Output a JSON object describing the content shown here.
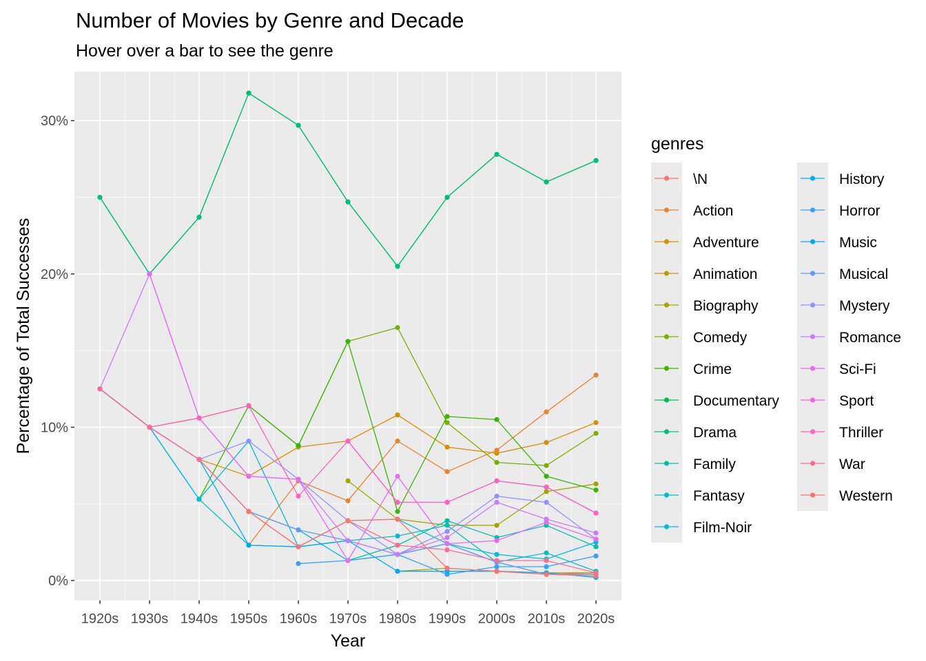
{
  "chart_data": {
    "type": "line",
    "title": "Number of Movies by Genre and Decade",
    "subtitle": "Hover over a bar to see the genre",
    "xlabel": "Year",
    "ylabel": "Percentage of Total Successes",
    "categories": [
      "1920s",
      "1930s",
      "1940s",
      "1950s",
      "1960s",
      "1970s",
      "1980s",
      "1990s",
      "2000s",
      "2010s",
      "2020s"
    ],
    "ylim": [
      -1.3,
      33.2
    ],
    "yticks": [
      0,
      10,
      20,
      30
    ],
    "ytick_labels": [
      "0%",
      "10%",
      "20%",
      "30%"
    ],
    "grid": true,
    "legend_title": "genres",
    "legend_position": "right",
    "series": [
      {
        "name": "\\N",
        "color": "#F8766D",
        "values": [
          null,
          null,
          7.9,
          null,
          null,
          null,
          null,
          null,
          0.6,
          0.4,
          0.5
        ]
      },
      {
        "name": "Action",
        "color": "#EA8331",
        "values": [
          null,
          null,
          null,
          2.3,
          6.5,
          5.2,
          9.1,
          7.1,
          8.5,
          11.0,
          13.4
        ]
      },
      {
        "name": "Adventure",
        "color": "#D89000",
        "values": [
          null,
          10.0,
          7.9,
          6.8,
          8.7,
          9.1,
          10.8,
          8.7,
          8.3,
          9.0,
          10.3
        ]
      },
      {
        "name": "Animation",
        "color": "#C09B00",
        "values": [
          null,
          null,
          null,
          null,
          null,
          null,
          0.6,
          0.8,
          0.6,
          0.5,
          0.5
        ]
      },
      {
        "name": "Biography",
        "color": "#A3A500",
        "values": [
          null,
          null,
          null,
          null,
          null,
          6.5,
          4.0,
          3.6,
          3.6,
          5.8,
          6.3
        ]
      },
      {
        "name": "Comedy",
        "color": "#7CAE00",
        "values": [
          12.5,
          10.0,
          10.6,
          11.4,
          8.8,
          15.6,
          16.5,
          10.3,
          7.7,
          7.5,
          9.6
        ]
      },
      {
        "name": "Crime",
        "color": "#39B600",
        "values": [
          null,
          null,
          5.3,
          11.4,
          8.8,
          15.6,
          4.5,
          10.7,
          10.5,
          6.8,
          5.9
        ]
      },
      {
        "name": "Documentary",
        "color": "#00BB4E",
        "values": [
          25.0,
          20.0,
          23.7,
          31.8,
          29.7,
          24.7,
          20.5,
          25.0,
          27.8,
          26.0,
          27.4
        ]
      },
      {
        "name": "Drama",
        "color": "#00BF7D",
        "values": [
          25.0,
          20.0,
          23.7,
          31.8,
          29.7,
          24.7,
          20.5,
          25.0,
          27.8,
          26.0,
          27.4
        ]
      },
      {
        "name": "Family",
        "color": "#00C1A3",
        "values": [
          null,
          null,
          null,
          null,
          null,
          1.3,
          2.3,
          3.9,
          2.8,
          3.6,
          2.2
        ]
      },
      {
        "name": "Fantasy",
        "color": "#00BFC4",
        "values": [
          12.5,
          10.0,
          5.3,
          2.3,
          2.2,
          2.6,
          2.9,
          3.6,
          1.2,
          1.8,
          0.6
        ]
      },
      {
        "name": "Film-Noir",
        "color": "#00BAE0",
        "values": [
          12.5,
          10.0,
          5.3,
          9.1,
          2.2,
          3.9,
          4.0,
          2.4,
          1.7,
          1.4,
          2.5
        ]
      },
      {
        "name": "History",
        "color": "#00B0F6",
        "values": [
          12.5,
          10.0,
          7.9,
          4.5,
          3.3,
          1.3,
          1.7,
          2.4,
          1.2,
          0.4,
          0.4
        ]
      },
      {
        "name": "Horror",
        "color": "#35A2FF",
        "values": [
          null,
          null,
          null,
          null,
          1.1,
          1.3,
          1.7,
          0.4,
          0.9,
          0.9,
          1.6
        ]
      },
      {
        "name": "Music",
        "color": "#00A9FF",
        "values": [
          12.5,
          10.0,
          7.9,
          2.3,
          2.2,
          2.6,
          0.6,
          0.6,
          0.6,
          0.5,
          0.2
        ]
      },
      {
        "name": "Musical",
        "color": "#619CFF",
        "values": [
          12.5,
          10.0,
          7.9,
          4.5,
          3.3,
          2.6,
          1.7,
          2.4,
          1.2,
          0.4,
          0.4
        ]
      },
      {
        "name": "Mystery",
        "color": "#9590FF",
        "values": [
          12.5,
          10.0,
          7.9,
          9.1,
          6.6,
          3.9,
          1.7,
          3.2,
          5.5,
          5.1,
          2.7
        ]
      },
      {
        "name": "Romance",
        "color": "#C77CFF",
        "values": [
          12.5,
          20.0,
          10.6,
          6.8,
          6.6,
          2.6,
          1.7,
          2.8,
          5.1,
          4.0,
          3.1
        ]
      },
      {
        "name": "Sci-Fi",
        "color": "#E76BF3",
        "values": [
          null,
          20.0,
          10.6,
          6.8,
          6.6,
          1.3,
          6.8,
          2.4,
          2.6,
          3.8,
          2.7
        ]
      },
      {
        "name": "Sport",
        "color": "#FA62DB",
        "values": [
          null,
          null,
          null,
          null,
          null,
          9.1,
          5.1,
          5.1,
          6.5,
          6.1,
          4.4
        ]
      },
      {
        "name": "Thriller",
        "color": "#FF62BC",
        "values": [
          null,
          10.0,
          10.6,
          11.4,
          5.5,
          9.1,
          5.1,
          5.1,
          6.5,
          6.1,
          4.4
        ]
      },
      {
        "name": "War",
        "color": "#FF6C91",
        "values": [
          12.5,
          10.0,
          7.9,
          4.5,
          2.2,
          3.9,
          2.3,
          2.0,
          1.3,
          1.3,
          0.5
        ]
      },
      {
        "name": "Western",
        "color": "#F8766D",
        "values": [
          null,
          null,
          null,
          4.5,
          2.2,
          3.9,
          4.0,
          0.8,
          0.6,
          0.4,
          0.3
        ]
      }
    ]
  }
}
